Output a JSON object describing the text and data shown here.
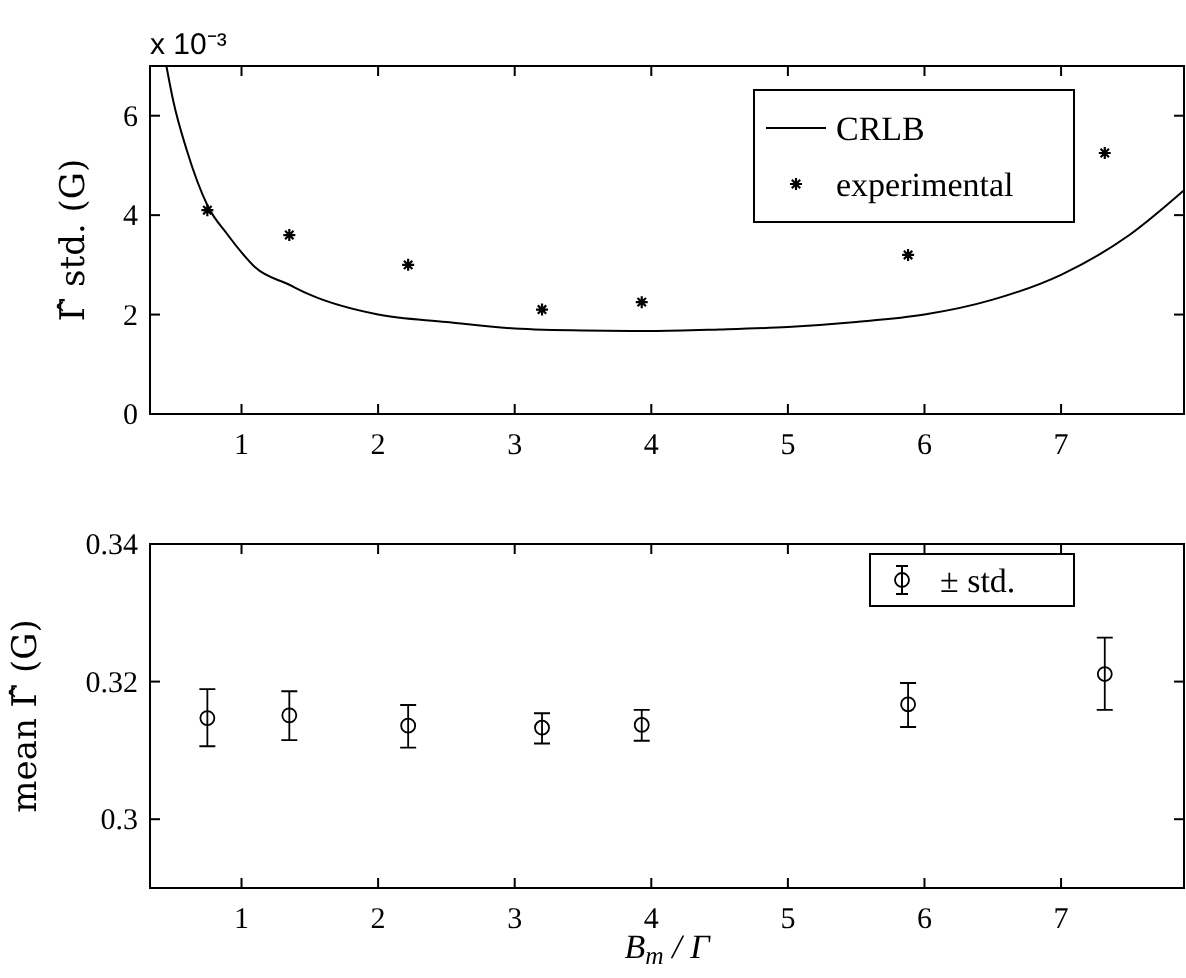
{
  "chart_data": [
    {
      "type": "scatter",
      "ylabel": "Γ̂ std. (G)",
      "annotations": [
        "x 10⁻³"
      ],
      "xlim": [
        0.33,
        7.9
      ],
      "xticks": [
        1,
        2,
        3,
        4,
        5,
        6,
        7
      ],
      "ylim": [
        0,
        7
      ],
      "yticks": [
        0,
        2,
        4,
        6
      ],
      "legend": "top right",
      "grid": false,
      "series": [
        {
          "name": "CRLB",
          "type": "line",
          "color": "#000000",
          "marker": "none",
          "line_style": "solid",
          "x": [
            0.45,
            0.5,
            0.6,
            0.75,
            0.9,
            1.0,
            1.1,
            1.35,
            1.5,
            2.0,
            2.5,
            3.0,
            3.5,
            4.0,
            4.5,
            5.0,
            5.5,
            6.0,
            6.5,
            7.0,
            7.5,
            7.9
          ],
          "values": [
            7.0,
            6.3,
            5.3,
            4.2,
            3.6,
            3.25,
            2.95,
            2.6,
            2.4,
            2.0,
            1.85,
            1.72,
            1.68,
            1.67,
            1.7,
            1.75,
            1.85,
            2.0,
            2.3,
            2.8,
            3.6,
            4.5
          ]
        },
        {
          "name": "experimental",
          "type": "scatter",
          "color": "#000000",
          "marker": "cross",
          "x": [
            0.75,
            1.35,
            2.22,
            3.2,
            3.93,
            5.88,
            7.32
          ],
          "values": [
            4.1,
            3.6,
            3.0,
            2.1,
            2.25,
            3.2,
            5.25
          ]
        }
      ]
    },
    {
      "type": "scatter",
      "ylabel": "mean Γ̂  (G)",
      "xlabel": "B$_{m}$ / Γ",
      "xlim": [
        0.33,
        7.9
      ],
      "xticks": [
        1,
        2,
        3,
        4,
        5,
        6,
        7
      ],
      "ylim": [
        0.29,
        0.34
      ],
      "yticks": [
        0.3,
        0.32,
        0.34
      ],
      "legend": "top right",
      "grid": false,
      "series": [
        {
          "name": "± std.",
          "type": "scatter",
          "color": "#000000",
          "marker": "circle",
          "x": [
            0.75,
            1.35,
            2.22,
            3.2,
            3.93,
            5.88,
            7.32
          ],
          "values": [
            0.3147,
            0.3151,
            0.3136,
            0.3133,
            0.3137,
            0.3167,
            0.3211
          ],
          "errors": [
            [
              0.3106,
              0.3189
            ],
            [
              0.3115,
              0.3186
            ],
            [
              0.3104,
              0.3166
            ],
            [
              0.311,
              0.3154
            ],
            [
              0.3114,
              0.3159
            ],
            [
              0.3134,
              0.3198
            ],
            [
              0.3159,
              0.3264
            ]
          ]
        }
      ]
    }
  ]
}
